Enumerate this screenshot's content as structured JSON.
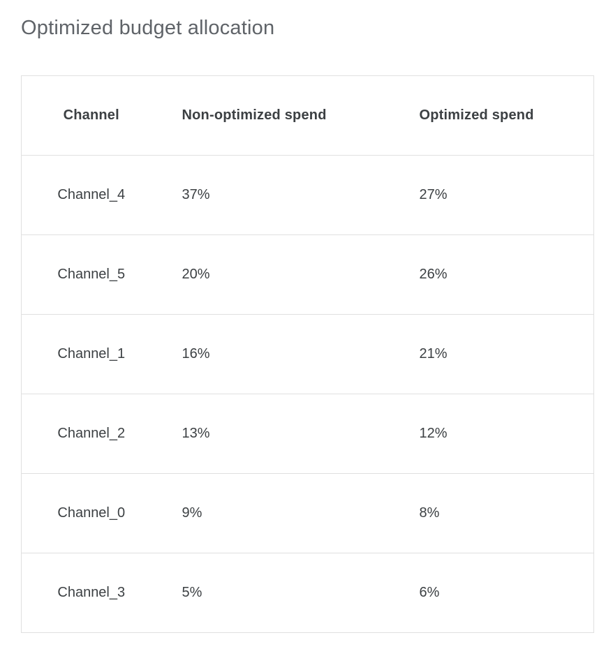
{
  "page": {
    "title": "Optimized budget allocation"
  },
  "colors": {
    "title_text": "#5f6368",
    "table_text": "#3c4043",
    "table_border": "#e0e0e0",
    "background": "#ffffff"
  },
  "chart_data": {
    "type": "table",
    "title": "Optimized budget allocation",
    "columns": [
      "Channel",
      "Non-optimized spend",
      "Optimized spend"
    ],
    "rows": [
      [
        "Channel_4",
        "37%",
        "27%"
      ],
      [
        "Channel_5",
        "20%",
        "26%"
      ],
      [
        "Channel_1",
        "16%",
        "21%"
      ],
      [
        "Channel_2",
        "13%",
        "12%"
      ],
      [
        "Channel_0",
        "9%",
        "8%"
      ],
      [
        "Channel_3",
        "5%",
        "6%"
      ]
    ]
  }
}
